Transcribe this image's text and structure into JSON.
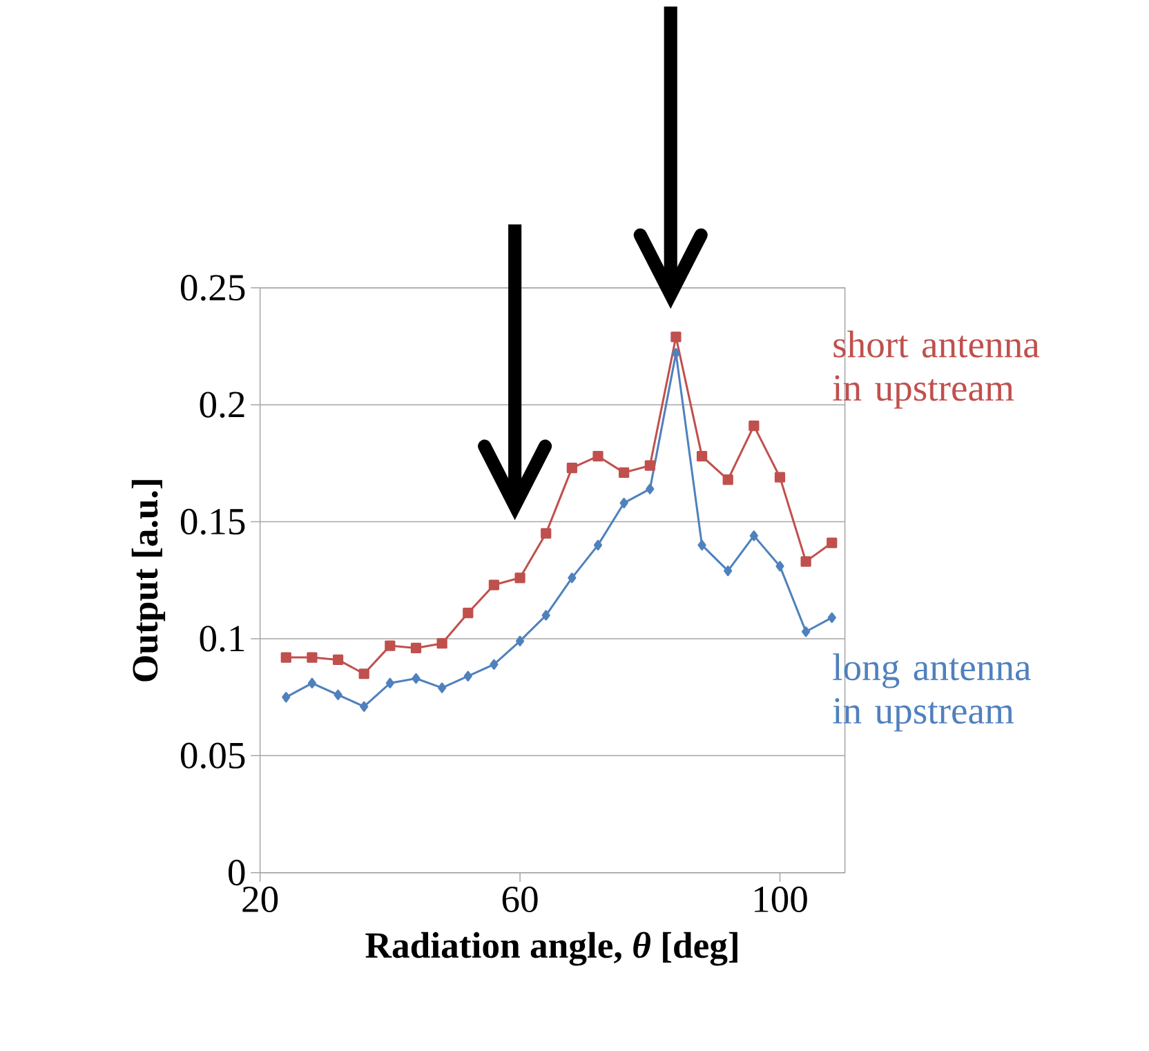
{
  "chart_data": {
    "type": "line",
    "xlabel": "Radiation angle, *θ* [deg]",
    "ylabel": "Output [a.u.]",
    "x": [
      24,
      28,
      32,
      36,
      40,
      44,
      48,
      52,
      56,
      60,
      64,
      68,
      72,
      76,
      80,
      84,
      88,
      92,
      96,
      100,
      104,
      108
    ],
    "series": [
      {
        "name": "short antenna\nin upstream",
        "color": "#c0504d",
        "marker": "square",
        "values": [
          0.092,
          0.092,
          0.091,
          0.085,
          0.097,
          0.096,
          0.098,
          0.111,
          0.123,
          0.126,
          0.145,
          0.173,
          0.178,
          0.171,
          0.174,
          0.229,
          0.178,
          0.168,
          0.191,
          0.169,
          0.133,
          0.141
        ]
      },
      {
        "name": "long antenna\nin upstream",
        "color": "#4f81bd",
        "marker": "diamond",
        "values": [
          0.075,
          0.081,
          0.076,
          0.071,
          0.081,
          0.083,
          0.079,
          0.084,
          0.089,
          0.099,
          0.11,
          0.126,
          0.14,
          0.158,
          0.164,
          0.222,
          0.14,
          0.129,
          0.144,
          0.131,
          0.103,
          0.109
        ]
      }
    ],
    "xlim": [
      20,
      110
    ],
    "ylim": [
      0,
      0.25
    ],
    "xticks": [
      20,
      60,
      100
    ],
    "yticks": [
      0,
      0.05,
      0.1,
      0.15,
      0.2,
      0.25
    ],
    "grid": "y"
  }
}
